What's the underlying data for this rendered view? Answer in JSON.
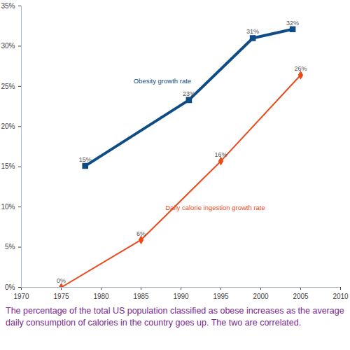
{
  "chart_data": {
    "type": "line",
    "caption": "The percentage of the total US population classified as obese increases as the average daily consumption of calories in the country goes up. The two are correlated.",
    "data_labels": true,
    "grid": false,
    "xlim": [
      1970,
      2010
    ],
    "xticks": [
      1970,
      1975,
      1980,
      1985,
      1990,
      1995,
      2000,
      2005,
      2010
    ],
    "ylim": [
      0,
      35
    ],
    "yticks": [
      {
        "value": 0,
        "label": "0%"
      },
      {
        "value": 5,
        "label": "5%"
      },
      {
        "value": 10,
        "label": "10%"
      },
      {
        "value": 15,
        "label": "15%"
      },
      {
        "value": 20,
        "label": "20%"
      },
      {
        "value": 25,
        "label": "25%"
      },
      {
        "value": 30,
        "label": "30%"
      },
      {
        "value": 35,
        "label": "35%"
      }
    ],
    "series": [
      {
        "name": "Obesity growth rate",
        "color": "#0e4c86",
        "marker": "square",
        "line_style": "solid",
        "x": [
          1978,
          1991,
          1999,
          2004
        ],
        "values": [
          15.1,
          23.3,
          31.0,
          32.1
        ],
        "value_labels": [
          "15%",
          "23%",
          "31%",
          "32%"
        ]
      },
      {
        "name": "Daily calorie ingestion growth rate",
        "color": "#ea4a1c",
        "marker": "diamond",
        "line_style": "solid",
        "x": [
          1975,
          1985,
          1995,
          2005
        ],
        "values": [
          0,
          5.9,
          15.7,
          26.4
        ],
        "value_labels": [
          "0%",
          "6%",
          "16%",
          "26%"
        ]
      }
    ]
  }
}
